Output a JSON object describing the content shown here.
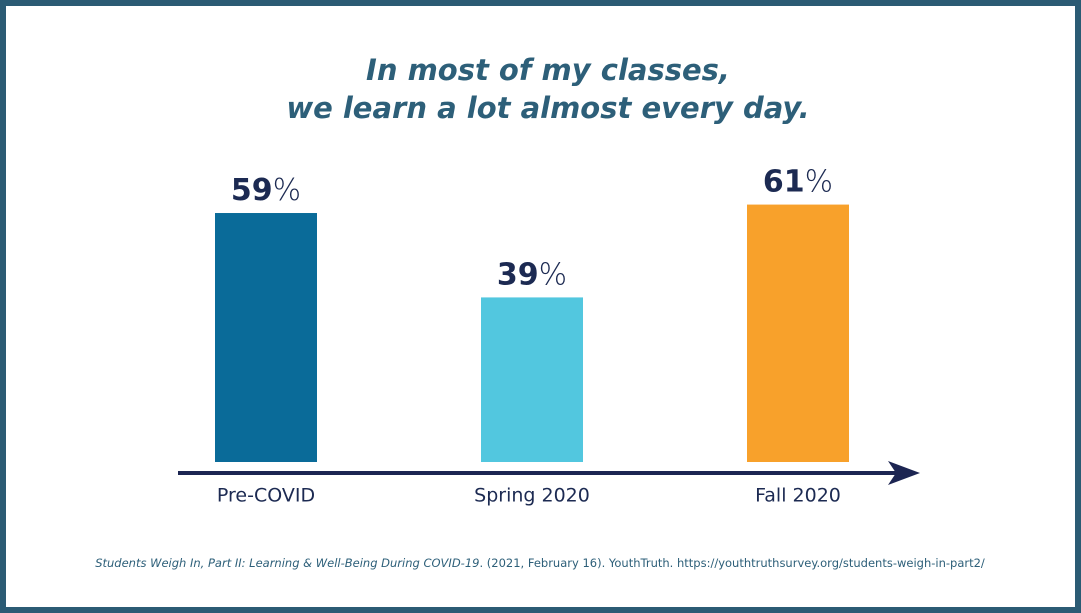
{
  "chart_data": {
    "type": "bar",
    "title": [
      "In most of my classes,",
      "we learn a lot almost every day."
    ],
    "categories": [
      "Pre-COVID",
      "Spring 2020",
      "Fall 2020"
    ],
    "values": [
      59,
      39,
      61
    ],
    "value_labels": [
      "59%",
      "39%",
      "61%"
    ],
    "colors": [
      "#0a6b99",
      "#52c7df",
      "#f8a12b"
    ],
    "source": {
      "title": "Students Weigh In, Part II: Learning & Well-Being During COVID-19",
      "rest": ". (2021, February 16). YouthTruth. https://youthtruthsurvey.org/students-weigh-in-part2/"
    }
  }
}
